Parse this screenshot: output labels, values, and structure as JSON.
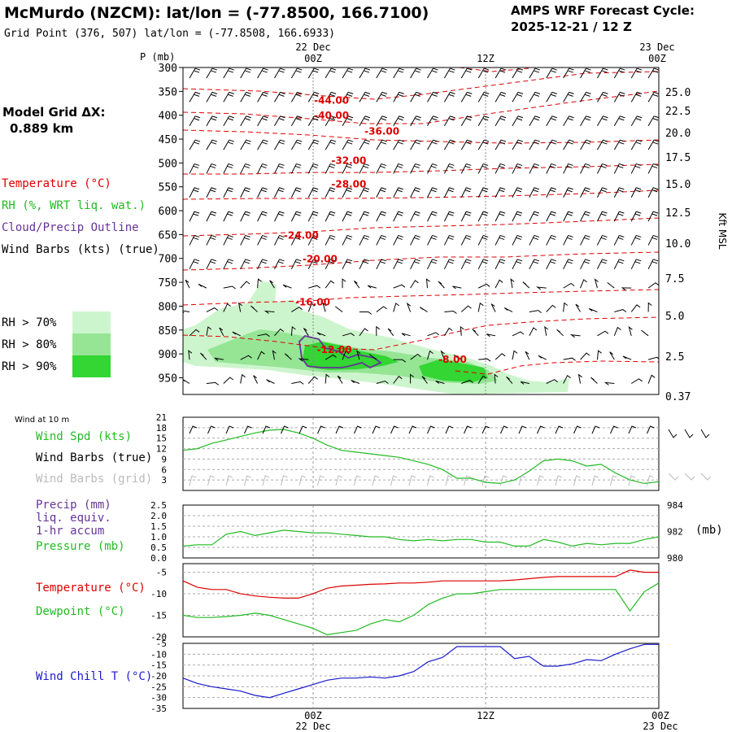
{
  "header": {
    "title": "McMurdo (NZCM):  lat/lon = (-77.8500, 166.7100)",
    "gridpoint": "Grid Point (376, 507) lat/lon = (-77.8508, 166.6933)",
    "cycle_label": "AMPS WRF Forecast Cycle:",
    "cycle_value": "2025-12-21 / 12  Z"
  },
  "time_axis": {
    "top_dates": [
      "22 Dec",
      "23 Dec"
    ],
    "ticks": [
      "00Z",
      "12Z",
      "00Z"
    ],
    "bottom_dates": [
      "22 Dec",
      "23 Dec"
    ],
    "hour_range": [
      0,
      33
    ]
  },
  "sidebar": {
    "model_grid_label": "Model Grid ΔX:",
    "model_grid_value": "0.889 km",
    "legend_temperature": "Temperature (°C)",
    "legend_rh": "RH (%, WRT liq. wat.)",
    "legend_cloud": "Cloud/Precip Outline",
    "legend_wind": "Wind Barbs (kts) (true)",
    "rh_levels": [
      "RH > 70%",
      "RH > 80%",
      "RH > 90%"
    ],
    "wind10_label": "Wind at 10 m",
    "wind_spd_label": "Wind Spd (kts)",
    "wind_barbs_true_label": "Wind Barbs (true)",
    "wind_barbs_grid_label": "Wind Barbs (grid)",
    "precip_label": "Precip (mm)",
    "precip_sub1": "liq. equiv.",
    "precip_sub2": "1-hr accum",
    "pressure_label": "Pressure (mb)",
    "temp_label": "Temperature (°C)",
    "dew_label": "Dewpoint (°C)",
    "windchill_label": "Wind Chill T (°C)"
  },
  "colors": {
    "temperature": "#dd0000",
    "rh_green": "#22bb22",
    "rh70": "#cdf5cd",
    "rh80": "#95e595",
    "rh90": "#33d633",
    "cloud": "#663399",
    "windchill": "#1a1acc",
    "grid": "#888888"
  },
  "chart_data": [
    {
      "id": "cross_section",
      "type": "heatmap",
      "ylabel": "P (mb)",
      "y_ticks": [
        "300",
        "350",
        "400",
        "450",
        "500",
        "550",
        "600",
        "650",
        "700",
        "750",
        "800",
        "850",
        "900",
        "950"
      ],
      "right_label": "Kft MSL",
      "right_ticks": [
        "25.0",
        "22.5",
        "20.0",
        "17.5",
        "15.0",
        "12.5",
        "10.0",
        "7.5",
        "5.0",
        "2.5",
        "0.37"
      ],
      "isotherm_labels": [
        {
          "text": "-44.00",
          "hour": 10.3,
          "p": 367
        },
        {
          "text": "-40.00",
          "hour": 10.3,
          "p": 399
        },
        {
          "text": "-36.00",
          "hour": 13.8,
          "p": 432
        },
        {
          "text": "-32.00",
          "hour": 11.5,
          "p": 493
        },
        {
          "text": "-28.00",
          "hour": 11.5,
          "p": 543
        },
        {
          "text": "-24.00",
          "hour": 8.2,
          "p": 650
        },
        {
          "text": "-20.00",
          "hour": 9.5,
          "p": 700
        },
        {
          "text": "-16.00",
          "hour": 9.0,
          "p": 790
        },
        {
          "text": "-12.00",
          "hour": 10.5,
          "p": 890
        },
        {
          "text": "-8.00",
          "hour": 18.7,
          "p": 910
        }
      ]
    },
    {
      "id": "wind10m",
      "type": "line",
      "ylim": [
        0,
        21
      ],
      "y_ticks": [
        "21",
        "18",
        "15",
        "12",
        "9",
        "6",
        "3"
      ],
      "series": [
        {
          "name": "Wind Spd (kts)",
          "values": [
            11.5,
            12,
            13.5,
            14.5,
            15.5,
            16.5,
            17.3,
            17.5,
            16.5,
            15,
            13,
            11.5,
            11,
            10.5,
            10,
            9.5,
            8.5,
            7.5,
            6,
            3.5,
            3.5,
            2.3,
            2,
            3,
            5.5,
            8.5,
            9,
            8.5,
            7,
            7.5,
            5,
            3,
            2,
            2.5
          ]
        }
      ]
    },
    {
      "id": "precip_pressure",
      "type": "line",
      "ylim_left": [
        0,
        2.5
      ],
      "y_ticks_left": [
        "2.5",
        "2.0",
        "1.5",
        "1.0",
        "0.5",
        "0.0"
      ],
      "right_ticks": [
        "984",
        "982",
        "980"
      ],
      "right_unit": "(mb)",
      "ylim_right": [
        980,
        984
      ],
      "series": [
        {
          "name": "Pressure (mb)",
          "values": [
            980.9,
            981.0,
            981.0,
            981.8,
            982.0,
            981.7,
            981.9,
            982.1,
            982.0,
            981.9,
            981.9,
            981.8,
            981.7,
            981.6,
            981.6,
            981.4,
            981.3,
            981.4,
            981.3,
            981.4,
            981.4,
            981.2,
            981.2,
            980.9,
            980.9,
            981.4,
            981.2,
            980.9,
            981.1,
            981.0,
            981.1,
            981.1,
            981.4,
            981.6
          ]
        }
      ]
    },
    {
      "id": "temp_dew",
      "type": "line",
      "ylim": [
        -20,
        -3
      ],
      "y_ticks": [
        "-5",
        "-10",
        "-15",
        "-20"
      ],
      "series": [
        {
          "name": "Temperature (°C)",
          "values": [
            -7,
            -8.5,
            -9,
            -9,
            -10,
            -10.5,
            -10.8,
            -11,
            -11,
            -10,
            -8.7,
            -8.2,
            -8,
            -7.8,
            -7.7,
            -7.5,
            -7.5,
            -7.3,
            -7,
            -7,
            -7,
            -7,
            -7,
            -6.8,
            -6.5,
            -6.2,
            -6,
            -6,
            -6,
            -6,
            -6,
            -4.5,
            -5,
            -5
          ]
        },
        {
          "name": "Dewpoint (°C)",
          "values": [
            -15,
            -15.5,
            -15.5,
            -15.3,
            -15,
            -14.5,
            -15,
            -16,
            -17,
            -18,
            -19.5,
            -19,
            -18.5,
            -17,
            -16,
            -16.5,
            -15,
            -12.5,
            -11,
            -10,
            -10,
            -9.5,
            -9,
            -9,
            -9,
            -9,
            -9,
            -9,
            -9,
            -9,
            -9,
            -14,
            -9.5,
            -7.5
          ]
        }
      ]
    },
    {
      "id": "windchill",
      "type": "line",
      "ylim": [
        -35,
        -5
      ],
      "y_ticks": [
        "-5",
        "-10",
        "-15",
        "-20",
        "-25",
        "-30",
        "-35"
      ],
      "series": [
        {
          "name": "Wind Chill T (°C)",
          "values": [
            -21,
            -23.5,
            -25,
            -26,
            -27,
            -29,
            -30,
            -28,
            -26,
            -24,
            -22,
            -21,
            -21,
            -20.5,
            -21,
            -20,
            -18,
            -13.5,
            -11.5,
            -6.5,
            -6.5,
            -6.5,
            -6.5,
            -12,
            -11,
            -15.5,
            -15.5,
            -14.5,
            -12.5,
            -13,
            -10,
            -7.5,
            -5.5,
            -5.5
          ]
        }
      ]
    }
  ]
}
